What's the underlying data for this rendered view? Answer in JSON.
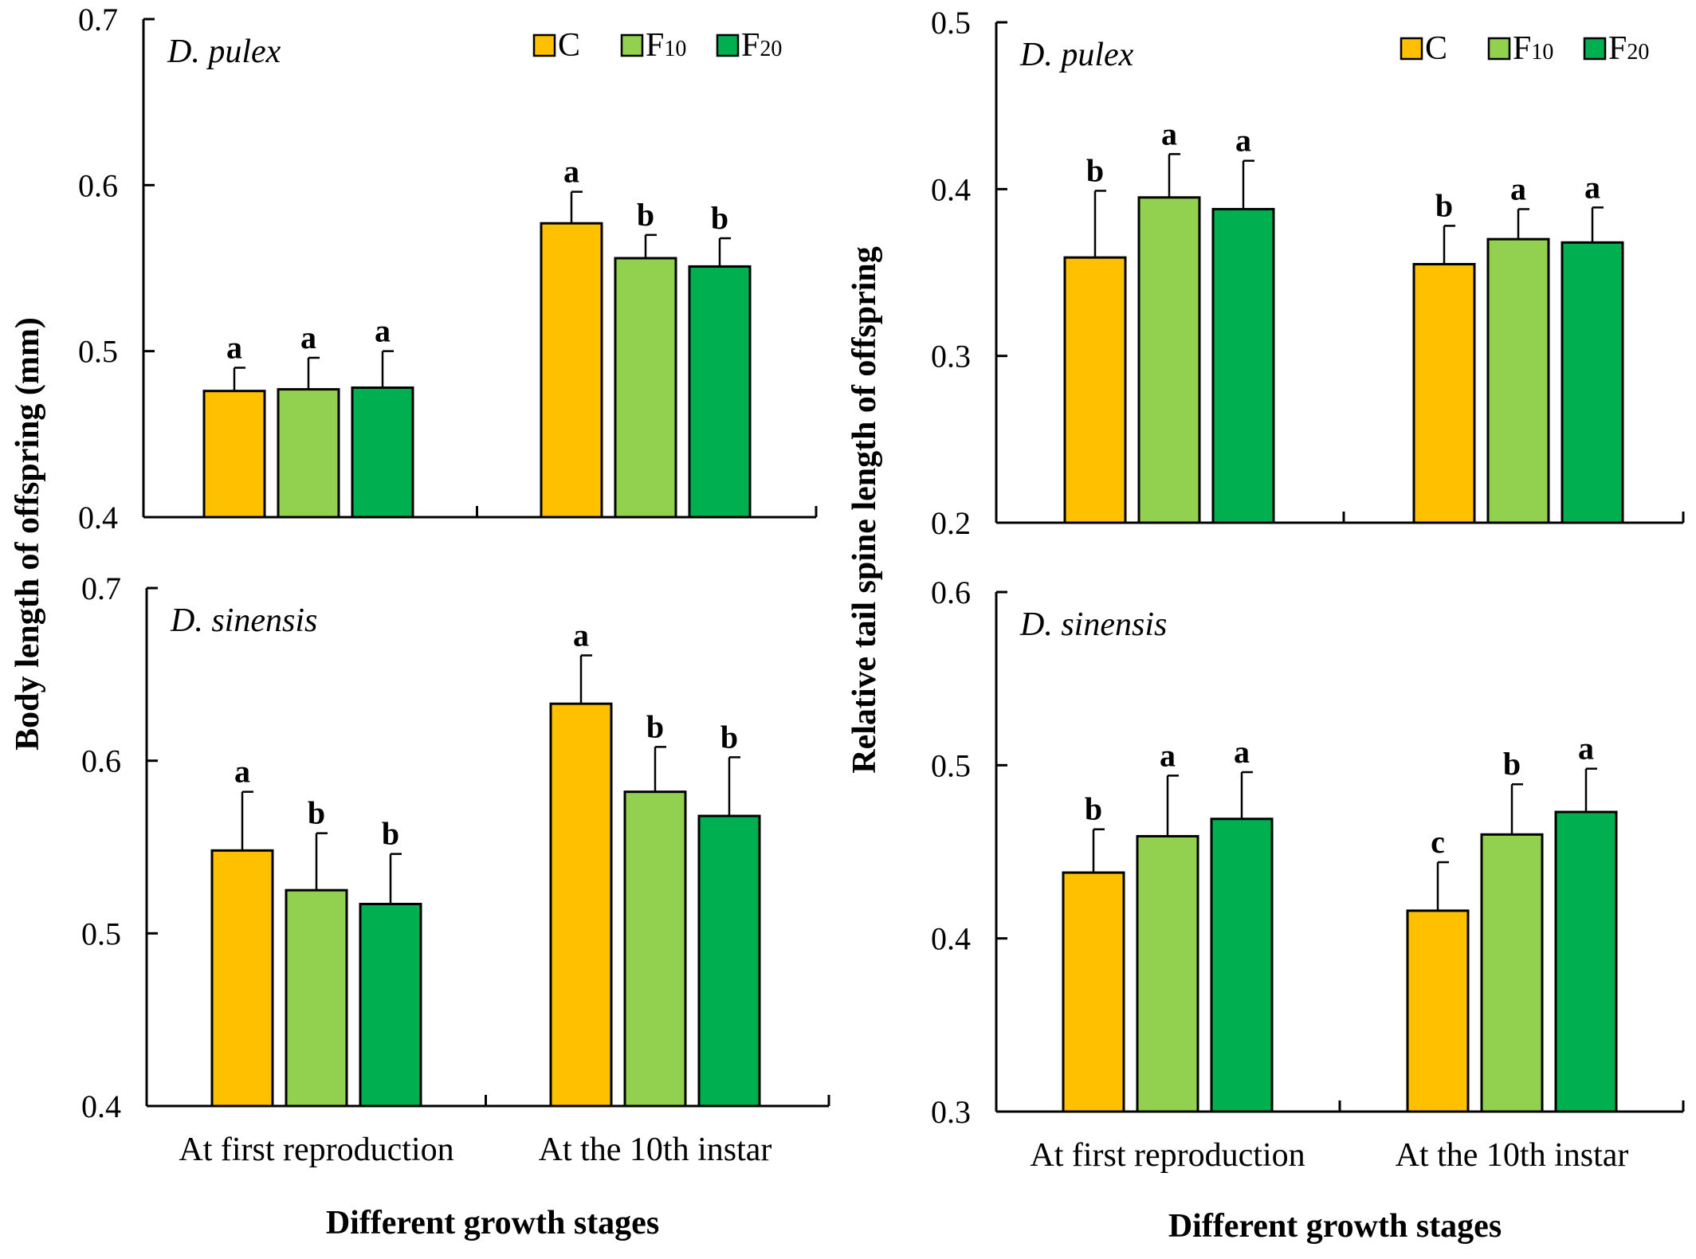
{
  "colors": {
    "C": "#FFC000",
    "F10": "#92D050",
    "F20": "#00B050"
  },
  "legend": [
    {
      "key": "C",
      "base": "C",
      "sub": ""
    },
    {
      "key": "F10",
      "base": "F",
      "sub": "10"
    },
    {
      "key": "F20",
      "base": "F",
      "sub": "20"
    }
  ],
  "left_ylabel": "Body length of offspring (mm)",
  "right_ylabel": "Relative tail spine length of offspring",
  "xlabel": "Different growth stages",
  "chart_data": [
    {
      "type": "bar",
      "panel_label": "D. pulex",
      "ylabel": "Body length of offspring (mm)",
      "ylim": [
        0.4,
        0.7
      ],
      "yticks": [
        "0.4",
        "0.5",
        "0.6",
        "0.7"
      ],
      "categories": [
        "At first reproduction",
        "At the 10th instar"
      ],
      "show_legend": true,
      "show_xlabels": false,
      "series": [
        {
          "name": "C",
          "values": [
            0.476,
            0.577
          ],
          "errors": [
            0.014,
            0.019
          ],
          "labels": [
            "a",
            "a"
          ]
        },
        {
          "name": "F10",
          "values": [
            0.477,
            0.556
          ],
          "errors": [
            0.019,
            0.014
          ],
          "labels": [
            "a",
            "b"
          ]
        },
        {
          "name": "F20",
          "values": [
            0.478,
            0.551
          ],
          "errors": [
            0.022,
            0.017
          ],
          "labels": [
            "a",
            "b"
          ]
        }
      ]
    },
    {
      "type": "bar",
      "panel_label": "D. pulex",
      "ylabel": "Relative tail spine length of offspring",
      "ylim": [
        0.2,
        0.5
      ],
      "yticks": [
        "0.2",
        "0.3",
        "0.4",
        "0.5"
      ],
      "categories": [
        "At first reproduction",
        "At the 10th instar"
      ],
      "show_legend": true,
      "show_xlabels": false,
      "series": [
        {
          "name": "C",
          "values": [
            0.359,
            0.355
          ],
          "errors": [
            0.04,
            0.023
          ],
          "labels": [
            "b",
            "b"
          ]
        },
        {
          "name": "F10",
          "values": [
            0.395,
            0.37
          ],
          "errors": [
            0.026,
            0.018
          ],
          "labels": [
            "a",
            "a"
          ]
        },
        {
          "name": "F20",
          "values": [
            0.388,
            0.368
          ],
          "errors": [
            0.029,
            0.021
          ],
          "labels": [
            "a",
            "a"
          ]
        }
      ]
    },
    {
      "type": "bar",
      "panel_label": "D. sinensis",
      "ylabel": "Body length of offspring (mm)",
      "ylim": [
        0.4,
        0.7
      ],
      "yticks": [
        "0.4",
        "0.5",
        "0.6",
        "0.7"
      ],
      "categories": [
        "At first reproduction",
        "At the 10th instar"
      ],
      "show_legend": false,
      "show_xlabels": true,
      "series": [
        {
          "name": "C",
          "values": [
            0.548,
            0.633
          ],
          "errors": [
            0.034,
            0.028
          ],
          "labels": [
            "a",
            "a"
          ]
        },
        {
          "name": "F10",
          "values": [
            0.525,
            0.582
          ],
          "errors": [
            0.033,
            0.026
          ],
          "labels": [
            "b",
            "b"
          ]
        },
        {
          "name": "F20",
          "values": [
            0.517,
            0.568
          ],
          "errors": [
            0.029,
            0.034
          ],
          "labels": [
            "b",
            "b"
          ]
        }
      ]
    },
    {
      "type": "bar",
      "panel_label": "D. sinensis",
      "ylabel": "Relative tail spine length of offspring",
      "ylim": [
        0.3,
        0.6
      ],
      "yticks": [
        "0.3",
        "0.4",
        "0.5",
        "0.6"
      ],
      "categories": [
        "At first reproduction",
        "At the 10th instar"
      ],
      "show_legend": false,
      "show_xlabels": true,
      "series": [
        {
          "name": "C",
          "values": [
            0.438,
            0.416
          ],
          "errors": [
            0.025,
            0.028
          ],
          "labels": [
            "b",
            "c"
          ]
        },
        {
          "name": "F10",
          "values": [
            0.459,
            0.46
          ],
          "errors": [
            0.035,
            0.029
          ],
          "labels": [
            "a",
            "b"
          ]
        },
        {
          "name": "F20",
          "values": [
            0.469,
            0.473
          ],
          "errors": [
            0.027,
            0.025
          ],
          "labels": [
            "a",
            "a"
          ]
        }
      ]
    }
  ]
}
